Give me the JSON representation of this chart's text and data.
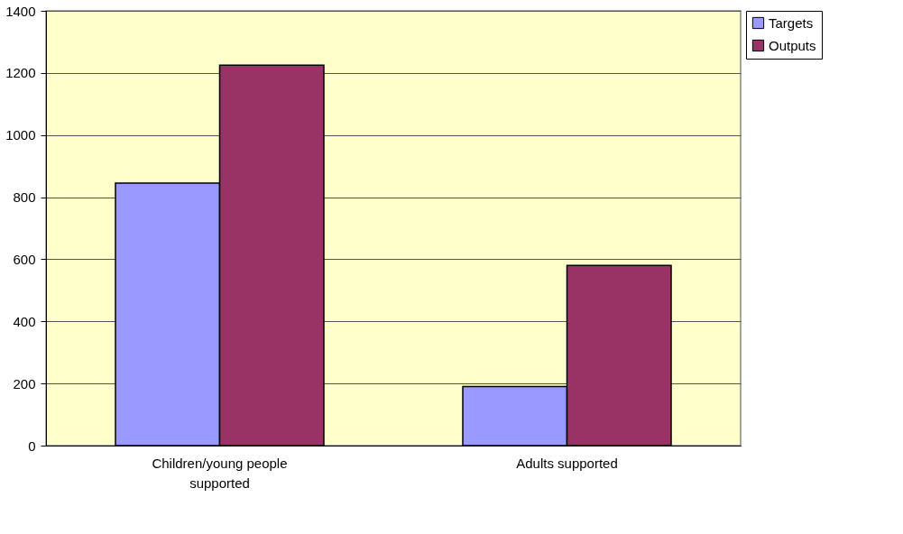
{
  "chart_data": {
    "type": "bar",
    "categories": [
      "Children/young people supported",
      "Adults supported"
    ],
    "series": [
      {
        "name": "Targets",
        "color": "#9999ff",
        "values": [
          845,
          190
        ]
      },
      {
        "name": "Outputs",
        "color": "#993366",
        "values": [
          1225,
          580
        ]
      }
    ],
    "ylim": [
      0,
      1400
    ],
    "yticks": [
      0,
      200,
      400,
      600,
      800,
      1000,
      1200,
      1400
    ],
    "grid": "y",
    "legend": "right"
  }
}
